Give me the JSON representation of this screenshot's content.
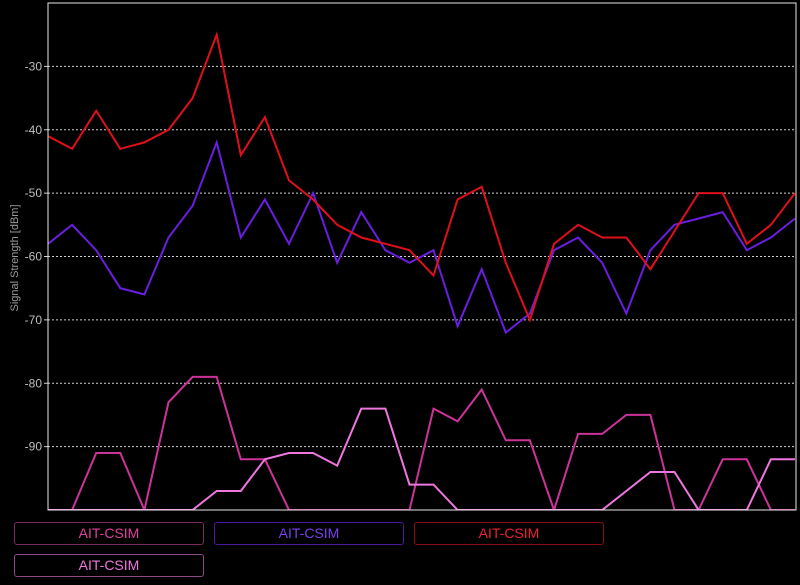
{
  "chart_data": {
    "type": "line",
    "ylabel": "Signal Strength [dBm]",
    "ylim": [
      -100,
      -20
    ],
    "yticks": [
      -30,
      -40,
      -50,
      -60,
      -70,
      -80,
      -90
    ],
    "grid": true,
    "legend_placement": "bottom",
    "x": [
      0,
      1,
      2,
      3,
      4,
      5,
      6,
      7,
      8,
      9,
      10,
      11,
      12,
      13,
      14,
      15,
      16,
      17,
      18,
      19,
      20,
      21,
      22,
      23,
      24,
      25,
      26,
      27,
      28,
      29,
      30,
      31
    ],
    "series": [
      {
        "name": "AIT-CSIM",
        "color": "#cc3399",
        "values": [
          -100,
          -100,
          -91,
          -91,
          -100,
          -83,
          -79,
          -79,
          -92,
          -92,
          -100,
          -100,
          -100,
          -100,
          -100,
          -100,
          -84,
          -86,
          -81,
          -89,
          -89,
          -100,
          -88,
          -88,
          -85,
          -85,
          -100,
          -100,
          -92,
          -92,
          -100,
          -100
        ]
      },
      {
        "name": "AIT-CSIM",
        "color": "#6a1ee0",
        "values": [
          -58,
          -55,
          -59,
          -65,
          -66,
          -57,
          -52,
          -42,
          -57,
          -51,
          -58,
          -50,
          -61,
          -53,
          -59,
          -61,
          -59,
          -71,
          -62,
          -72,
          -69,
          -59,
          -57,
          -61,
          -69,
          -59,
          -55,
          -54,
          -53,
          -59,
          -57,
          -54
        ]
      },
      {
        "name": "AIT-CSIM",
        "color": "#e0101a",
        "values": [
          -41,
          -43,
          -37,
          -43,
          -42,
          -40,
          -35,
          -25,
          -44,
          -38,
          -48,
          -51,
          -55,
          -57,
          -58,
          -59,
          -63,
          -51,
          -49,
          -61,
          -70,
          -58,
          -55,
          -57,
          -57,
          -62,
          -56,
          -50,
          -50,
          -58,
          -55,
          -50
        ]
      },
      {
        "name": "AIT-CSIM",
        "color": "#ee77dd",
        "values": [
          -100,
          -100,
          -100,
          -100,
          -100,
          -100,
          -100,
          -97,
          -97,
          -92,
          -91,
          -91,
          -93,
          -84,
          -84,
          -96,
          -96,
          -100,
          -100,
          -100,
          -100,
          -100,
          -100,
          -100,
          -97,
          -94,
          -94,
          -100,
          -100,
          -100,
          -92,
          -92
        ]
      }
    ]
  }
}
